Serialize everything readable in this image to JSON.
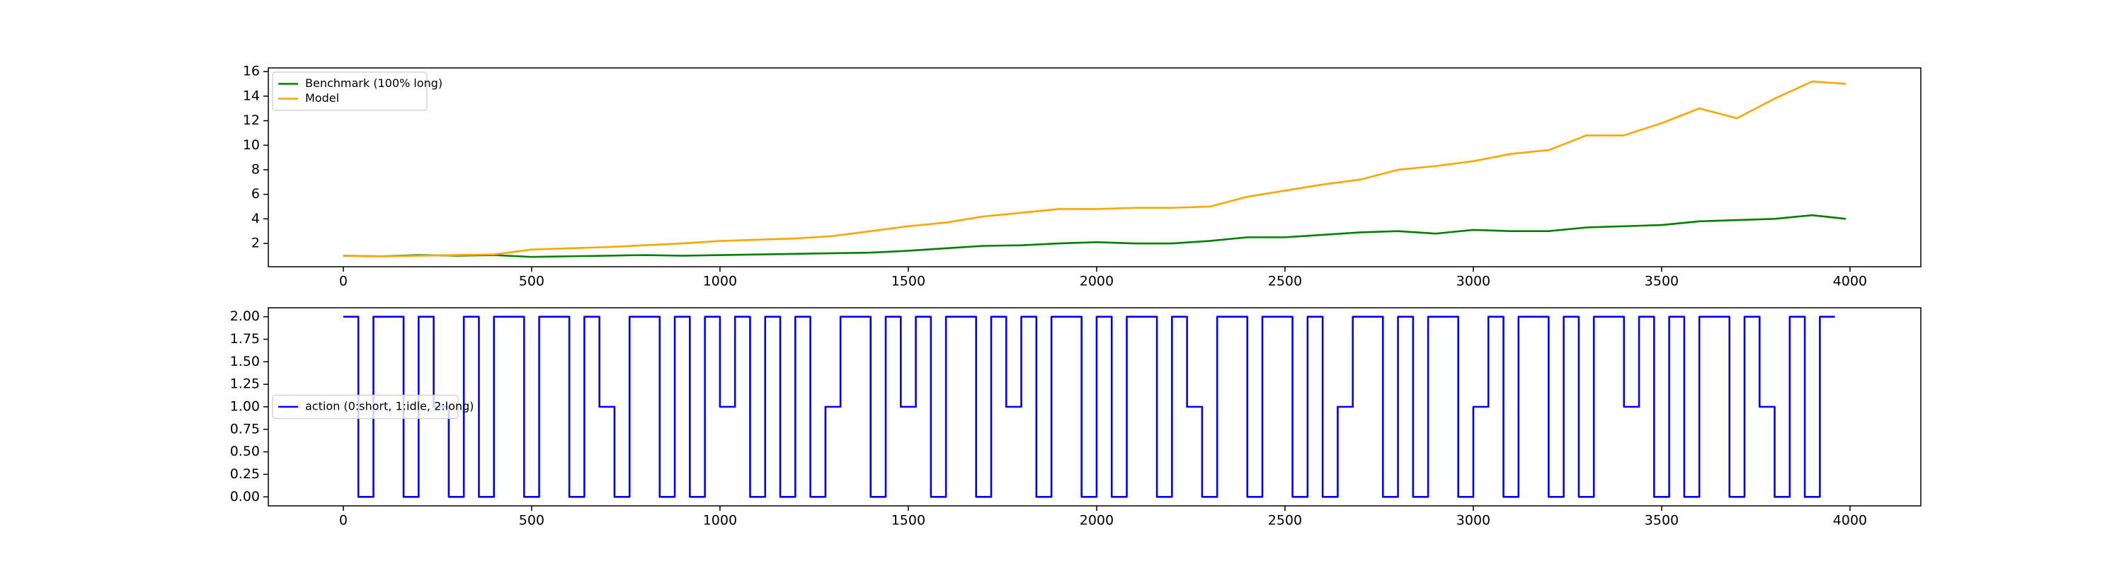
{
  "chart_data": [
    {
      "type": "line",
      "x": [
        0,
        100,
        200,
        300,
        400,
        500,
        600,
        700,
        800,
        900,
        1000,
        1100,
        1200,
        1300,
        1400,
        1500,
        1600,
        1700,
        1800,
        1900,
        2000,
        2100,
        2200,
        2300,
        2400,
        2500,
        2600,
        2700,
        2800,
        2900,
        3000,
        3100,
        3200,
        3300,
        3400,
        3500,
        3600,
        3700,
        3800,
        3900,
        3989
      ],
      "series": [
        {
          "name": "Benchmark (100% long)",
          "color": "#008000",
          "values": [
            1.0,
            0.95,
            1.05,
            1.0,
            1.05,
            0.9,
            0.95,
            1.0,
            1.05,
            1.0,
            1.05,
            1.1,
            1.15,
            1.2,
            1.25,
            1.4,
            1.6,
            1.8,
            1.85,
            2.0,
            2.1,
            2.0,
            2.0,
            2.2,
            2.5,
            2.5,
            2.7,
            2.9,
            3.0,
            2.8,
            3.1,
            3.0,
            3.0,
            3.3,
            3.4,
            3.5,
            3.8,
            3.9,
            4.0,
            4.3,
            4.0
          ]
        },
        {
          "name": "Model",
          "color": "#ffa500",
          "values": [
            1.0,
            0.95,
            1.0,
            1.05,
            1.1,
            1.5,
            1.6,
            1.7,
            1.85,
            2.0,
            2.2,
            2.3,
            2.4,
            2.6,
            3.0,
            3.4,
            3.7,
            4.2,
            4.5,
            4.8,
            4.8,
            4.9,
            4.9,
            5.0,
            5.8,
            6.3,
            6.8,
            7.2,
            8.0,
            8.3,
            8.7,
            9.3,
            9.6,
            10.8,
            10.8,
            11.8,
            13.0,
            12.2,
            13.8,
            15.2,
            15.0
          ]
        }
      ],
      "xlim": [
        -199,
        4188
      ],
      "xticks": [
        0,
        500,
        1000,
        1500,
        2000,
        2500,
        3000,
        3500,
        4000
      ],
      "ylim": [
        0.1,
        16.3
      ],
      "yticks": [
        2,
        4,
        6,
        8,
        10,
        12,
        14,
        16
      ],
      "legend": "upper left"
    },
    {
      "type": "step",
      "x": [
        0,
        40,
        80,
        120,
        160,
        200,
        240,
        280,
        320,
        360,
        400,
        440,
        480,
        520,
        560,
        600,
        640,
        680,
        720,
        760,
        800,
        840,
        880,
        920,
        960,
        1000,
        1040,
        1080,
        1120,
        1160,
        1200,
        1240,
        1280,
        1320,
        1360,
        1400,
        1440,
        1480,
        1520,
        1560,
        1600,
        1640,
        1680,
        1720,
        1760,
        1800,
        1840,
        1880,
        1920,
        1960,
        2000,
        2040,
        2080,
        2120,
        2160,
        2200,
        2240,
        2280,
        2320,
        2360,
        2400,
        2440,
        2480,
        2520,
        2560,
        2600,
        2640,
        2680,
        2720,
        2760,
        2800,
        2840,
        2880,
        2920,
        2960,
        3000,
        3040,
        3080,
        3120,
        3160,
        3200,
        3240,
        3280,
        3320,
        3360,
        3400,
        3440,
        3480,
        3520,
        3560,
        3600,
        3640,
        3680,
        3720,
        3760,
        3800,
        3840,
        3880,
        3920,
        3960
      ],
      "series": [
        {
          "name": "action (0:short, 1:idle, 2:long)",
          "color": "#0000ff",
          "values": [
            2,
            0,
            2,
            2,
            0,
            2,
            1,
            0,
            2,
            0,
            2,
            2,
            0,
            2,
            2,
            0,
            2,
            1,
            0,
            2,
            2,
            0,
            2,
            0,
            2,
            1,
            2,
            0,
            2,
            0,
            2,
            0,
            1,
            2,
            2,
            0,
            2,
            1,
            2,
            0,
            2,
            2,
            0,
            2,
            1,
            2,
            0,
            2,
            2,
            0,
            2,
            0,
            2,
            2,
            0,
            2,
            1,
            0,
            2,
            2,
            0,
            2,
            2,
            0,
            2,
            0,
            1,
            2,
            2,
            0,
            2,
            0,
            2,
            2,
            0,
            1,
            2,
            0,
            2,
            2,
            0,
            2,
            0,
            2,
            2,
            1,
            2,
            0,
            2,
            0,
            2,
            2,
            0,
            2,
            1,
            0,
            2,
            0,
            2,
            2
          ]
        }
      ],
      "xlim": [
        -199,
        4188
      ],
      "xticks": [
        0,
        500,
        1000,
        1500,
        2000,
        2500,
        3000,
        3500,
        4000
      ],
      "ylim": [
        -0.1,
        2.1
      ],
      "yticks": [
        {
          "value": 0,
          "label": "0.00"
        },
        {
          "value": 0.25,
          "label": "0.25"
        },
        {
          "value": 0.5,
          "label": "0.50"
        },
        {
          "value": 0.75,
          "label": "0.75"
        },
        {
          "value": 1,
          "label": "1.00"
        },
        {
          "value": 1.25,
          "label": "1.25"
        },
        {
          "value": 1.5,
          "label": "1.50"
        },
        {
          "value": 1.75,
          "label": "1.75"
        },
        {
          "value": 2,
          "label": "2.00"
        }
      ],
      "legend": "center left"
    }
  ]
}
